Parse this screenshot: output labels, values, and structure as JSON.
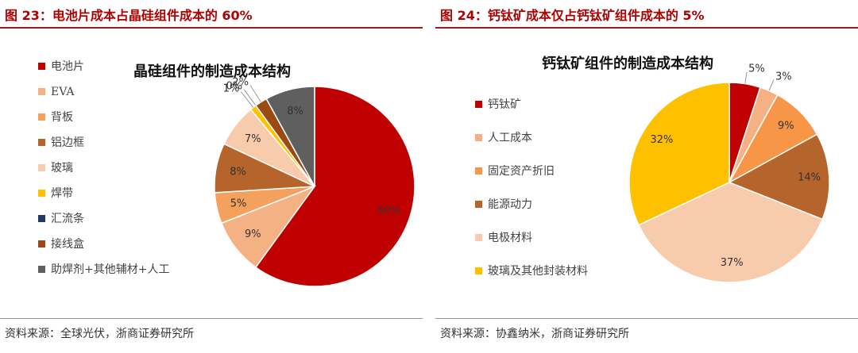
{
  "left": {
    "figure_title": "图 23：电池片成本占晶硅组件成本的 60%",
    "source": "资料来源：全球光伏，浙商证券研究所"
  },
  "right": {
    "figure_title": "图 24：钙钛矿成本仅占钙钛矿组件成本的 5%",
    "source": "资料来源：协鑫纳米，浙商证券研究所"
  },
  "chart_data": [
    {
      "type": "pie",
      "title": "晶硅组件的制造成本结构",
      "legend_position": "left",
      "categories": [
        "电池片",
        "EVA",
        "背板",
        "铝边框",
        "玻璃",
        "焊带",
        "汇流条",
        "接线盒",
        "助焊剂+其他辅材+人工"
      ],
      "values": [
        60,
        9,
        5,
        8,
        7,
        1,
        0,
        2,
        8
      ],
      "labels": [
        "60%",
        "9%",
        "5%",
        "8%",
        "7%",
        "1%",
        "0%",
        "2%",
        "8%"
      ],
      "colors": [
        "#c00000",
        "#f4b183",
        "#f4a15d",
        "#b5652b",
        "#f8cbad",
        "#ffc000",
        "#1f3864",
        "#9c4a14",
        "#5f5f5f"
      ]
    },
    {
      "type": "pie",
      "title": "钙钛矿组件的制造成本结构",
      "legend_position": "left",
      "categories": [
        "钙钛矿",
        "人工成本",
        "固定资产折旧",
        "能源动力",
        "电极材料",
        "玻璃及其他封装材料"
      ],
      "values": [
        5,
        3,
        9,
        14,
        37,
        32
      ],
      "labels": [
        "5%",
        "3%",
        "9%",
        "14%",
        "37%",
        "32%"
      ],
      "colors": [
        "#c00000",
        "#f4b183",
        "#f79646",
        "#b5652b",
        "#f8cbad",
        "#ffc000"
      ]
    }
  ]
}
